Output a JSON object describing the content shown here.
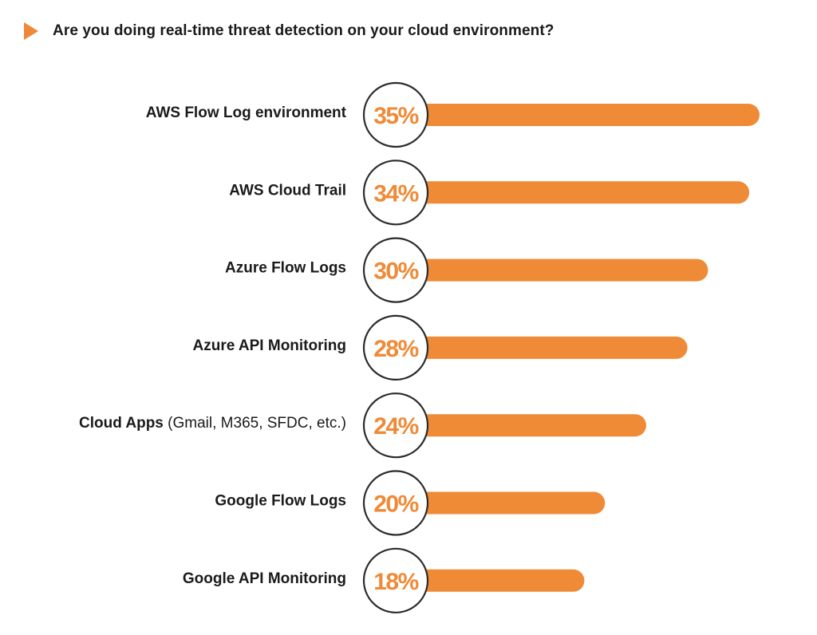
{
  "colors": {
    "accent": "#ef8a36",
    "text": "#1a1a1a",
    "circle_border": "#2b2b2b",
    "background": "#ffffff"
  },
  "header": {
    "title": "Are you doing real-time threat detection on your cloud environment?",
    "marker_icon": "play-triangle-icon"
  },
  "chart_data": {
    "type": "bar",
    "orientation": "horizontal",
    "title": "Are you doing real-time threat detection on your cloud environment?",
    "xlabel": "",
    "ylabel": "",
    "xlim": [
      0,
      35
    ],
    "grid": false,
    "legend": "none",
    "unit": "%",
    "categories": [
      {
        "main": "AWS Flow Log environment",
        "sub": ""
      },
      {
        "main": "AWS Cloud Trail",
        "sub": ""
      },
      {
        "main": "Azure Flow Logs",
        "sub": ""
      },
      {
        "main": "Azure API Monitoring",
        "sub": ""
      },
      {
        "main": "Cloud Apps",
        "sub": " (Gmail, M365, SFDC, etc.)"
      },
      {
        "main": "Google Flow Logs",
        "sub": ""
      },
      {
        "main": "Google API Monitoring",
        "sub": ""
      }
    ],
    "values": [
      35,
      34,
      30,
      28,
      24,
      20,
      18
    ],
    "value_labels": [
      "35%",
      "34%",
      "30%",
      "28%",
      "24%",
      "20%",
      "18%"
    ]
  }
}
